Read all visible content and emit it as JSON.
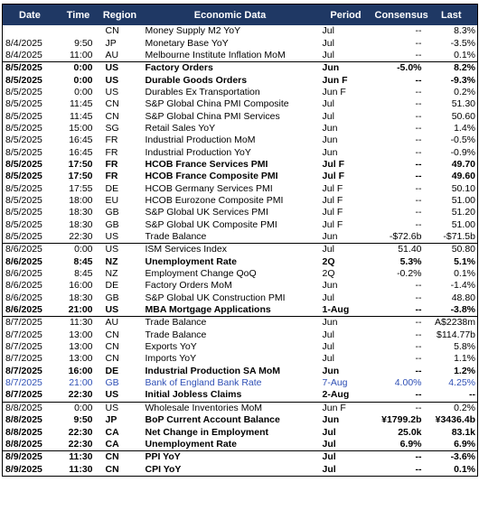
{
  "header": {
    "date": "Date",
    "time": "Time",
    "region": "Region",
    "event": "Economic Data",
    "period": "Period",
    "consensus": "Consensus",
    "last": "Last"
  },
  "rows": [
    {
      "date": "",
      "time": "",
      "region": "CN",
      "event": "Money Supply M2 YoY",
      "period": "Jul",
      "consensus": "--",
      "last": "8.3%",
      "bold": false,
      "sep": false
    },
    {
      "date": "8/4/2025",
      "time": "9:50",
      "region": "JP",
      "event": "Monetary Base YoY",
      "period": "Jul",
      "consensus": "--",
      "last": "-3.5%",
      "bold": false,
      "sep": false
    },
    {
      "date": "8/4/2025",
      "time": "11:00",
      "region": "AU",
      "event": "Melbourne Institute Inflation MoM",
      "period": "Jul",
      "consensus": "--",
      "last": "0.1%",
      "bold": false,
      "sep": false
    },
    {
      "date": "8/5/2025",
      "time": "0:00",
      "region": "US",
      "event": "Factory Orders",
      "period": "Jun",
      "consensus": "-5.0%",
      "last": "8.2%",
      "bold": true,
      "sep": true
    },
    {
      "date": "8/5/2025",
      "time": "0:00",
      "region": "US",
      "event": "Durable Goods Orders",
      "period": "Jun F",
      "consensus": "--",
      "last": "-9.3%",
      "bold": true,
      "sep": false
    },
    {
      "date": "8/5/2025",
      "time": "0:00",
      "region": "US",
      "event": "Durables Ex Transportation",
      "period": "Jun F",
      "consensus": "--",
      "last": "0.2%",
      "bold": false,
      "sep": false
    },
    {
      "date": "8/5/2025",
      "time": "11:45",
      "region": "CN",
      "event": "S&P Global China PMI Composite",
      "period": "Jul",
      "consensus": "--",
      "last": "51.30",
      "bold": false,
      "sep": false
    },
    {
      "date": "8/5/2025",
      "time": "11:45",
      "region": "CN",
      "event": "S&P Global China PMI Services",
      "period": "Jul",
      "consensus": "--",
      "last": "50.60",
      "bold": false,
      "sep": false
    },
    {
      "date": "8/5/2025",
      "time": "15:00",
      "region": "SG",
      "event": "Retail Sales YoY",
      "period": "Jun",
      "consensus": "--",
      "last": "1.4%",
      "bold": false,
      "sep": false
    },
    {
      "date": "8/5/2025",
      "time": "16:45",
      "region": "FR",
      "event": "Industrial Production MoM",
      "period": "Jun",
      "consensus": "--",
      "last": "-0.5%",
      "bold": false,
      "sep": false
    },
    {
      "date": "8/5/2025",
      "time": "16:45",
      "region": "FR",
      "event": "Industrial Production YoY",
      "period": "Jun",
      "consensus": "--",
      "last": "-0.9%",
      "bold": false,
      "sep": false
    },
    {
      "date": "8/5/2025",
      "time": "17:50",
      "region": "FR",
      "event": "HCOB France Services PMI",
      "period": "Jul F",
      "consensus": "--",
      "last": "49.70",
      "bold": true,
      "sep": false
    },
    {
      "date": "8/5/2025",
      "time": "17:50",
      "region": "FR",
      "event": "HCOB France Composite PMI",
      "period": "Jul F",
      "consensus": "--",
      "last": "49.60",
      "bold": true,
      "sep": false
    },
    {
      "date": "8/5/2025",
      "time": "17:55",
      "region": "DE",
      "event": "HCOB Germany Services PMI",
      "period": "Jul F",
      "consensus": "--",
      "last": "50.10",
      "bold": false,
      "sep": false
    },
    {
      "date": "8/5/2025",
      "time": "18:00",
      "region": "EU",
      "event": "HCOB Eurozone Composite PMI",
      "period": "Jul F",
      "consensus": "--",
      "last": "51.00",
      "bold": false,
      "sep": false
    },
    {
      "date": "8/5/2025",
      "time": "18:30",
      "region": "GB",
      "event": "S&P Global UK Services PMI",
      "period": "Jul F",
      "consensus": "--",
      "last": "51.20",
      "bold": false,
      "sep": false
    },
    {
      "date": "8/5/2025",
      "time": "18:30",
      "region": "GB",
      "event": "S&P Global UK Composite PMI",
      "period": "Jul F",
      "consensus": "--",
      "last": "51.00",
      "bold": false,
      "sep": false
    },
    {
      "date": "8/5/2025",
      "time": "22:30",
      "region": "US",
      "event": "Trade Balance",
      "period": "Jun",
      "consensus": "-$72.6b",
      "last": "-$71.5b",
      "bold": false,
      "sep": false
    },
    {
      "date": "8/6/2025",
      "time": "0:00",
      "region": "US",
      "event": "ISM Services Index",
      "period": "Jul",
      "consensus": "51.40",
      "last": "50.80",
      "bold": false,
      "sep": true
    },
    {
      "date": "8/6/2025",
      "time": "8:45",
      "region": "NZ",
      "event": "Unemployment Rate",
      "period": "2Q",
      "consensus": "5.3%",
      "last": "5.1%",
      "bold": true,
      "sep": false
    },
    {
      "date": "8/6/2025",
      "time": "8:45",
      "region": "NZ",
      "event": "Employment Change QoQ",
      "period": "2Q",
      "consensus": "-0.2%",
      "last": "0.1%",
      "bold": false,
      "sep": false
    },
    {
      "date": "8/6/2025",
      "time": "16:00",
      "region": "DE",
      "event": "Factory Orders MoM",
      "period": "Jun",
      "consensus": "--",
      "last": "-1.4%",
      "bold": false,
      "sep": false
    },
    {
      "date": "8/6/2025",
      "time": "18:30",
      "region": "GB",
      "event": "S&P Global UK Construction PMI",
      "period": "Jul",
      "consensus": "--",
      "last": "48.80",
      "bold": false,
      "sep": false
    },
    {
      "date": "8/6/2025",
      "time": "21:00",
      "region": "US",
      "event": "MBA Mortgage Applications",
      "period": "1-Aug",
      "consensus": "--",
      "last": "-3.8%",
      "bold": true,
      "sep": false
    },
    {
      "date": "8/7/2025",
      "time": "11:30",
      "region": "AU",
      "event": "Trade Balance",
      "period": "Jun",
      "consensus": "--",
      "last": "A$2238m",
      "bold": false,
      "sep": true
    },
    {
      "date": "8/7/2025",
      "time": "13:00",
      "region": "CN",
      "event": "Trade Balance",
      "period": "Jul",
      "consensus": "--",
      "last": "$114.77b",
      "bold": false,
      "sep": false
    },
    {
      "date": "8/7/2025",
      "time": "13:00",
      "region": "CN",
      "event": "Exports YoY",
      "period": "Jul",
      "consensus": "--",
      "last": "5.8%",
      "bold": false,
      "sep": false
    },
    {
      "date": "8/7/2025",
      "time": "13:00",
      "region": "CN",
      "event": "Imports YoY",
      "period": "Jul",
      "consensus": "--",
      "last": "1.1%",
      "bold": false,
      "sep": false
    },
    {
      "date": "8/7/2025",
      "time": "16:00",
      "region": "DE",
      "event": "Industrial Production SA MoM",
      "period": "Jun",
      "consensus": "--",
      "last": "1.2%",
      "bold": true,
      "sep": false
    },
    {
      "date": "8/7/2025",
      "time": "21:00",
      "region": "GB",
      "event": "Bank of England Bank Rate",
      "period": "7-Aug",
      "consensus": "4.00%",
      "last": "4.25%",
      "bold": false,
      "sep": false,
      "highlight": true
    },
    {
      "date": "8/7/2025",
      "time": "22:30",
      "region": "US",
      "event": "Initial Jobless Claims",
      "period": "2-Aug",
      "consensus": "--",
      "last": "--",
      "bold": true,
      "sep": false
    },
    {
      "date": "8/8/2025",
      "time": "0:00",
      "region": "US",
      "event": "Wholesale Inventories MoM",
      "period": "Jun F",
      "consensus": "--",
      "last": "0.2%",
      "bold": false,
      "sep": true
    },
    {
      "date": "8/8/2025",
      "time": "9:50",
      "region": "JP",
      "event": "BoP Current Account Balance",
      "period": "Jun",
      "consensus": "¥1799.2b",
      "last": "¥3436.4b",
      "bold": true,
      "sep": false
    },
    {
      "date": "8/8/2025",
      "time": "22:30",
      "region": "CA",
      "event": "Net Change in Employment",
      "period": "Jul",
      "consensus": "25.0k",
      "last": "83.1k",
      "bold": true,
      "sep": false
    },
    {
      "date": "8/8/2025",
      "time": "22:30",
      "region": "CA",
      "event": "Unemployment Rate",
      "period": "Jul",
      "consensus": "6.9%",
      "last": "6.9%",
      "bold": true,
      "sep": false
    },
    {
      "date": "8/9/2025",
      "time": "11:30",
      "region": "CN",
      "event": "PPI YoY",
      "period": "Jul",
      "consensus": "--",
      "last": "-3.6%",
      "bold": true,
      "sep": true
    },
    {
      "date": "8/9/2025",
      "time": "11:30",
      "region": "CN",
      "event": "CPI YoY",
      "period": "Jul",
      "consensus": "--",
      "last": "0.1%",
      "bold": true,
      "sep": false
    }
  ]
}
